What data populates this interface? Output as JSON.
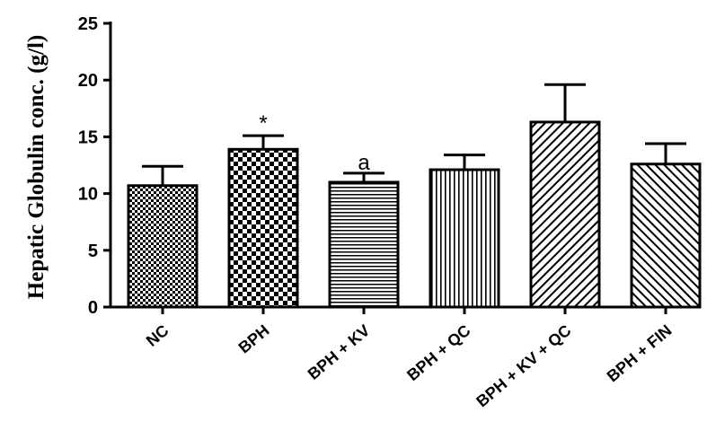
{
  "chart_data": {
    "type": "bar",
    "title": "",
    "xlabel": "",
    "ylabel": "Hepatic Globulin conc. (g/l)",
    "ylim": [
      0,
      25
    ],
    "yticks": [
      0,
      5,
      10,
      15,
      20,
      25
    ],
    "grid": false,
    "categories": [
      "NC",
      "BPH",
      "BPH + KV",
      "BPH + QC",
      "BPH + KV + QC",
      "BPH + FIN"
    ],
    "values": [
      10.7,
      13.9,
      11.0,
      12.1,
      16.3,
      12.6
    ],
    "errors": [
      1.7,
      1.2,
      0.8,
      1.3,
      3.3,
      1.8
    ],
    "annotations": [
      "",
      "*",
      "a",
      "",
      "",
      ""
    ],
    "patterns": [
      "small-checker",
      "large-checker",
      "horizontal-lines",
      "vertical-lines",
      "diagonal-up",
      "diagonal-down"
    ]
  }
}
